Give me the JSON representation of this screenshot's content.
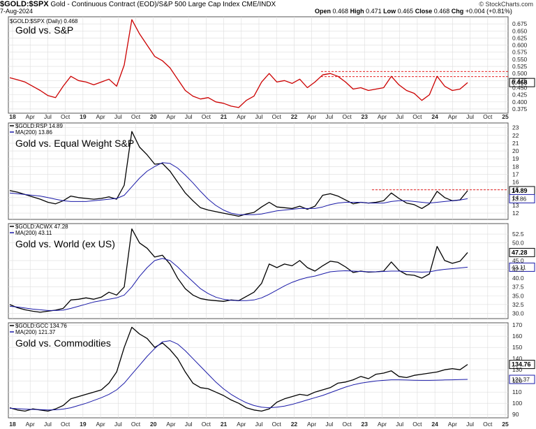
{
  "header": {
    "symbol": "$GOLD:$SPX",
    "description": "Gold - Continuous Contract (EOD)/S&P 500 Large Cap Index  CME/INDX",
    "date": "7-Aug-2024",
    "open_label": "Open",
    "open": "0.468",
    "high_label": "High",
    "high": "0.471",
    "low_label": "Low",
    "low": "0.465",
    "close_label": "Close",
    "close": "0.468",
    "chg_label": "Chg",
    "chg": "+0.004 (+0.81%)",
    "brand": "© StockCharts.com"
  },
  "colors": {
    "price_red": "#cc0000",
    "price_black": "#000000",
    "ma_blue": "#1a1aa8",
    "resistance_red": "#e00000",
    "grid": "#dddddd",
    "last_box": "#000000"
  },
  "x_axis": {
    "labels": [
      "18",
      "Apr",
      "Jul",
      "Oct",
      "19",
      "Apr",
      "Jul",
      "Oct",
      "20",
      "Apr",
      "Jul",
      "Oct",
      "21",
      "Apr",
      "Jul",
      "Oct",
      "22",
      "Apr",
      "Jul",
      "Oct",
      "23",
      "Apr",
      "Jul",
      "Oct",
      "24",
      "Apr",
      "Jul",
      "Oct",
      "25"
    ],
    "year_labels": [
      "18",
      "19",
      "20",
      "21",
      "22",
      "23",
      "24",
      "25"
    ]
  },
  "chart_data": [
    {
      "type": "line",
      "title": "Gold vs. S&P",
      "legend": [
        "$GOLD:$SPX (Daily) 0.468"
      ],
      "series": [
        {
          "name": "$GOLD:$SPX",
          "values": [
            0.485,
            0.478,
            0.47,
            0.455,
            0.44,
            0.422,
            0.415,
            0.455,
            0.49,
            0.475,
            0.47,
            0.46,
            0.47,
            0.48,
            0.455,
            0.53,
            0.69,
            0.64,
            0.6,
            0.56,
            0.545,
            0.52,
            0.48,
            0.44,
            0.42,
            0.41,
            0.415,
            0.4,
            0.395,
            0.385,
            0.38,
            0.405,
            0.42,
            0.47,
            0.5,
            0.47,
            0.475,
            0.465,
            0.48,
            0.45,
            0.47,
            0.495,
            0.5,
            0.49,
            0.47,
            0.445,
            0.45,
            0.44,
            0.445,
            0.45,
            0.49,
            0.46,
            0.44,
            0.43,
            0.405,
            0.425,
            0.49,
            0.455,
            0.44,
            0.445,
            0.468
          ]
        }
      ],
      "ylim": [
        0.36,
        0.7
      ],
      "ticks": [
        "0.700",
        "0.675",
        "0.650",
        "0.625",
        "0.600",
        "0.575",
        "0.550",
        "0.525",
        "0.500",
        "0.475",
        "0.450",
        "0.425",
        "0.400",
        "0.375"
      ],
      "resistance": [
        0.507,
        0.489
      ],
      "last_value": "0.468"
    },
    {
      "type": "line",
      "title": "Gold vs. Equal Weight S&P",
      "legend": [
        "$GOLD:RSP 14.89",
        "MA(200) 13.86"
      ],
      "series": [
        {
          "name": "$GOLD:RSP",
          "values": [
            14.9,
            14.7,
            14.4,
            14.1,
            13.8,
            13.4,
            13.2,
            13.6,
            14.2,
            14.0,
            13.9,
            13.8,
            13.9,
            14.1,
            13.8,
            15.6,
            22.5,
            20.5,
            19.5,
            18.3,
            18.4,
            17.4,
            16.0,
            14.6,
            13.6,
            12.7,
            12.4,
            12.2,
            12.0,
            11.8,
            11.6,
            11.9,
            12.1,
            12.8,
            13.4,
            12.8,
            12.7,
            12.6,
            12.9,
            12.5,
            12.9,
            14.3,
            14.5,
            14.2,
            13.7,
            13.2,
            13.4,
            13.3,
            13.4,
            13.6,
            14.6,
            13.9,
            13.3,
            13.1,
            12.6,
            13.2,
            14.8,
            14.0,
            13.6,
            13.7,
            14.89
          ]
        },
        {
          "name": "MA(200)",
          "values": [
            14.6,
            14.5,
            14.4,
            14.3,
            14.2,
            14.0,
            13.8,
            13.6,
            13.5,
            13.5,
            13.5,
            13.6,
            13.7,
            13.8,
            13.9,
            14.3,
            15.4,
            16.5,
            17.4,
            18.0,
            18.5,
            18.4,
            17.8,
            16.9,
            15.9,
            14.8,
            13.8,
            13.0,
            12.4,
            12.0,
            11.8,
            11.8,
            11.8,
            11.9,
            12.1,
            12.3,
            12.4,
            12.5,
            12.6,
            12.6,
            12.6,
            12.8,
            13.1,
            13.3,
            13.4,
            13.4,
            13.4,
            13.3,
            13.3,
            13.3,
            13.5,
            13.6,
            13.6,
            13.5,
            13.4,
            13.3,
            13.4,
            13.5,
            13.6,
            13.7,
            13.86
          ]
        }
      ],
      "ylim": [
        11.2,
        23.6
      ],
      "ticks": [
        "23",
        "22",
        "21",
        "20",
        "19",
        "18",
        "17",
        "16",
        "15",
        "14",
        "13",
        "12"
      ],
      "resistance": [
        15.0
      ],
      "last_value": "14.89",
      "ma_value": "13.86"
    },
    {
      "type": "line",
      "title": "Gold vs. World (ex US)",
      "legend": [
        "$GOLD:ACWX 47.28",
        "MA(200) 43.11"
      ],
      "series": [
        {
          "name": "$GOLD:ACWX",
          "values": [
            32.5,
            31.6,
            31.0,
            30.6,
            30.3,
            30.6,
            30.9,
            31.4,
            33.8,
            34.0,
            34.4,
            34.0,
            34.6,
            36.0,
            35.2,
            37.5,
            54.0,
            50.0,
            48.5,
            46.0,
            46.5,
            44.0,
            40.0,
            37.0,
            35.2,
            34.2,
            33.8,
            33.6,
            33.4,
            33.8,
            33.6,
            34.8,
            36.0,
            38.5,
            44.0,
            43.0,
            44.0,
            43.5,
            45.0,
            43.0,
            42.0,
            43.5,
            44.8,
            44.5,
            43.2,
            41.6,
            42.0,
            41.7,
            41.8,
            42.0,
            44.6,
            42.2,
            41.0,
            40.8,
            40.0,
            41.2,
            49.0,
            45.0,
            44.2,
            44.8,
            47.28
          ]
        },
        {
          "name": "MA(200)",
          "values": [
            32.0,
            31.8,
            31.5,
            31.2,
            31.0,
            30.8,
            30.8,
            30.9,
            31.4,
            32.0,
            32.6,
            33.2,
            33.6,
            34.0,
            34.4,
            35.2,
            37.5,
            40.5,
            43.0,
            45.0,
            45.6,
            45.0,
            43.2,
            41.0,
            39.0,
            37.0,
            35.6,
            34.6,
            34.0,
            33.7,
            33.6,
            33.6,
            33.8,
            34.4,
            35.4,
            36.6,
            37.8,
            38.8,
            39.6,
            40.2,
            40.6,
            41.2,
            41.8,
            42.0,
            42.1,
            42.0,
            41.9,
            41.8,
            41.8,
            41.9,
            42.0,
            42.0,
            41.9,
            41.8,
            41.7,
            41.8,
            42.2,
            42.5,
            42.7,
            42.9,
            43.11
          ]
        }
      ],
      "ylim": [
        28.5,
        55.5
      ],
      "ticks": [
        "52.5",
        "50.0",
        "45.0",
        "42.5",
        "40.0",
        "37.5",
        "35.0",
        "32.5",
        "30.0"
      ],
      "last_value": "47.28",
      "ma_value": "43.11"
    },
    {
      "type": "line",
      "title": "Gold vs. Commodities",
      "legend": [
        "$GOLD:GCC 134.76",
        "MA(200) 121.37"
      ],
      "series": [
        {
          "name": "$GOLD:GCC",
          "values": [
            96,
            94,
            93,
            95,
            94,
            93,
            95,
            98,
            104,
            106,
            108,
            110,
            112,
            118,
            128,
            150,
            168,
            162,
            158,
            150,
            154,
            148,
            140,
            128,
            118,
            114,
            113,
            110,
            107,
            103,
            100,
            96,
            94,
            93,
            95,
            101,
            104,
            106,
            108,
            107,
            110,
            112,
            114,
            118,
            119,
            121,
            124,
            122,
            126,
            127,
            129,
            124,
            123,
            125,
            126,
            127,
            128,
            130,
            131,
            130,
            134.76
          ]
        },
        {
          "name": "MA(200)",
          "values": [
            95.5,
            95.2,
            94.8,
            94.5,
            94.3,
            94.0,
            94.2,
            94.8,
            96.0,
            98.0,
            100.0,
            102.5,
            105.0,
            108.0,
            112.0,
            118.0,
            126.0,
            134.0,
            142.0,
            149.0,
            155.0,
            156.0,
            153.0,
            147.0,
            140.0,
            133.0,
            126.0,
            119.0,
            113.0,
            108.0,
            104.0,
            100.5,
            98.0,
            96.5,
            96.0,
            96.5,
            97.5,
            99.0,
            101.0,
            103.0,
            105.0,
            107.0,
            109.5,
            112.0,
            114.5,
            116.5,
            118.0,
            119.0,
            120.0,
            120.5,
            121.0,
            121.0,
            120.8,
            120.6,
            120.5,
            120.5,
            120.7,
            120.9,
            121.0,
            121.2,
            121.37
          ]
        }
      ],
      "ylim": [
        87,
        172
      ],
      "ticks": [
        "170",
        "160",
        "150",
        "140",
        "130",
        "120",
        "110",
        "100",
        "90"
      ],
      "last_value": "134.76",
      "ma_value": "121.37"
    }
  ]
}
